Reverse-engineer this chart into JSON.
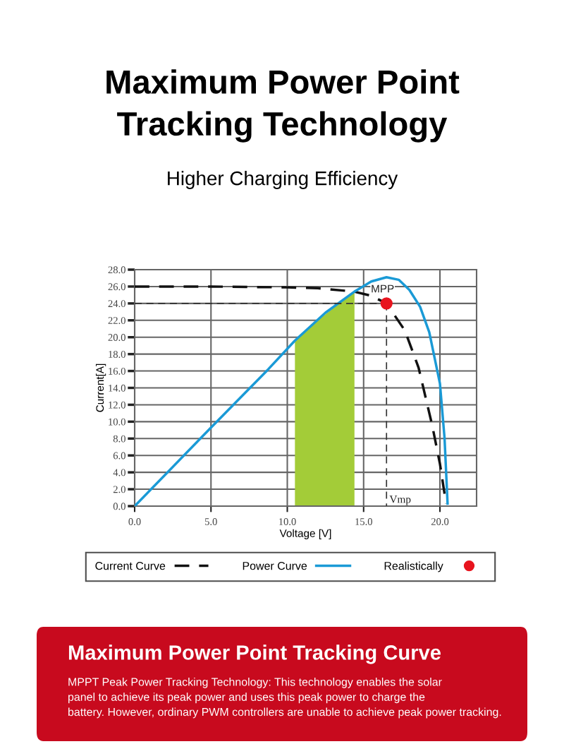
{
  "chart_data": {
    "type": "line",
    "title": "Maximum Power Point\nTracking Technology",
    "subtitle": "Higher Charging Efficiency",
    "xlabel": "Voltage [V]",
    "ylabel": "Current[A]",
    "series": [
      {
        "type": "area",
        "color": "#a3cc38",
        "x": [
          10.5,
          12.0,
          14.4
        ],
        "values": [
          19.6,
          22.0,
          25.4
        ]
      },
      {
        "name": "Current Curve",
        "color": "#111111",
        "line_style": "dashed",
        "x": [
          0,
          5,
          10,
          12,
          14.4,
          15.5,
          16.5,
          17.7,
          18.6,
          19.5,
          20.0,
          20.4
        ],
        "values": [
          26.0,
          26.0,
          25.9,
          25.8,
          25.4,
          24.9,
          24.0,
          20.8,
          16.4,
          9.5,
          5.0,
          0.3
        ]
      },
      {
        "name": "Power Curve",
        "color": "#1a9ad6",
        "line_style": "solid",
        "x": [
          0,
          5,
          8.75,
          10.5,
          12.5,
          14.4,
          15.5,
          16.5,
          17.3,
          18.0,
          18.7,
          19.3,
          20.0,
          20.3,
          20.5
        ],
        "values": [
          0,
          9.3,
          16.2,
          19.6,
          22.9,
          25.4,
          26.6,
          27.1,
          26.8,
          25.6,
          23.6,
          20.6,
          14.5,
          8.1,
          0.3
        ]
      },
      {
        "color": "#333333",
        "line_style": "dashed",
        "x": [
          0,
          16.5
        ],
        "values": [
          24.0,
          24.0
        ]
      },
      {
        "color": "#333333",
        "line_style": "dashed",
        "x": [
          16.5,
          16.5
        ],
        "values": [
          24.0,
          0
        ]
      },
      {
        "name": "Realistically",
        "type": "scatter",
        "color": "#e8141e",
        "marker": "circle",
        "x": [
          16.5
        ],
        "values": [
          24.0
        ]
      }
    ],
    "xlim": [
      0,
      22.4
    ],
    "ylim": [
      0,
      28
    ],
    "xticks": [
      {
        "value": 0,
        "label": "0.0"
      },
      {
        "value": 5,
        "label": "5.0"
      },
      {
        "value": 10,
        "label": "10.0"
      },
      {
        "value": 15,
        "label": "15.0"
      },
      {
        "value": 20,
        "label": "20.0"
      }
    ],
    "yticks": [
      {
        "value": 0,
        "label": "0.0"
      },
      {
        "value": 2,
        "label": "2.0"
      },
      {
        "value": 4,
        "label": "4.0"
      },
      {
        "value": 6,
        "label": "6.0"
      },
      {
        "value": 8,
        "label": "8.0"
      },
      {
        "value": 10,
        "label": "10.0"
      },
      {
        "value": 12,
        "label": "12.0"
      },
      {
        "value": 14,
        "label": "14.0"
      },
      {
        "value": 16,
        "label": "16.0"
      },
      {
        "value": 18,
        "label": "18.0"
      },
      {
        "value": 20,
        "label": "20.0"
      },
      {
        "value": 22,
        "label": "22.0"
      },
      {
        "value": 24,
        "label": "24.0"
      },
      {
        "value": 26,
        "label": "26.0"
      },
      {
        "value": 28,
        "label": "28.0"
      }
    ],
    "grid": true,
    "legend": "bottom",
    "annotations": [
      {
        "text": "MPP",
        "x": 16.5,
        "y": 24.0
      },
      {
        "text": "Vmp",
        "x": 16.5,
        "y": 0
      },
      "Maximum Power Point Tracking Curve",
      "MPPT Peak Power Tracking Technology: This technology enables the solar\npanel to achieve its peak power and uses this peak power to charge the\nbattery. However, ordinary PWM controllers are unable to achieve peak power tracking."
    ]
  }
}
